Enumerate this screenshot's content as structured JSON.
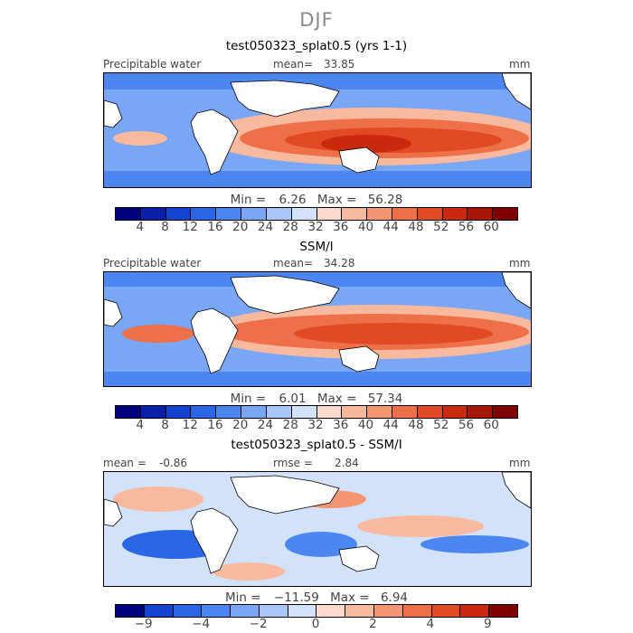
{
  "season": "DJF",
  "colors": {
    "abs_scale": [
      "#00007f",
      "#0a1fa8",
      "#1543d1",
      "#2a66e6",
      "#4c86f0",
      "#7aa7f5",
      "#a8c6f8",
      "#d2e2fb",
      "#fbd9cc",
      "#f9b99e",
      "#f49672",
      "#ee7048",
      "#e24a25",
      "#c92a0e",
      "#a81605",
      "#7f0000"
    ],
    "diff_scale": [
      "#00007f",
      "#1543d1",
      "#2a66e6",
      "#4c86f0",
      "#7aa7f5",
      "#a8c6f8",
      "#d2e2fb",
      "#fbd9cc",
      "#f9b99e",
      "#f49672",
      "#ee7048",
      "#e24a25",
      "#c92a0e",
      "#7f0000"
    ]
  },
  "panels": [
    {
      "title": "test050323_splat0.5 (yrs 1-1)",
      "left_label": "Precipitable water",
      "center_label": "mean=",
      "center_value": "33.85",
      "unit": "mm",
      "min_label": "Min =",
      "min_value": "6.26",
      "max_label": "Max =",
      "max_value": "56.28",
      "ticks": [
        "4",
        "8",
        "12",
        "16",
        "20",
        "24",
        "28",
        "32",
        "36",
        "40",
        "44",
        "48",
        "52",
        "56",
        "60"
      ]
    },
    {
      "title": "SSM/I",
      "left_label": "Precipitable water",
      "center_label": "mean=",
      "center_value": "34.28",
      "unit": "mm",
      "min_label": "Min =",
      "min_value": "6.01",
      "max_label": "Max =",
      "max_value": "57.34",
      "ticks": [
        "4",
        "8",
        "12",
        "16",
        "20",
        "24",
        "28",
        "32",
        "36",
        "40",
        "44",
        "48",
        "52",
        "56",
        "60"
      ]
    },
    {
      "title": "test050323_splat0.5 - SSM/I",
      "left_label": "mean =",
      "left_value": "-0.86",
      "center_label": "rmse =",
      "center_value": "2.84",
      "unit": "mm",
      "min_label": "Min =",
      "min_value": "−11.59",
      "max_label": "Max =",
      "max_value": "6.94",
      "ticks": [
        "−9",
        "−4",
        "−2",
        "0",
        "2",
        "4",
        "9"
      ]
    }
  ]
}
